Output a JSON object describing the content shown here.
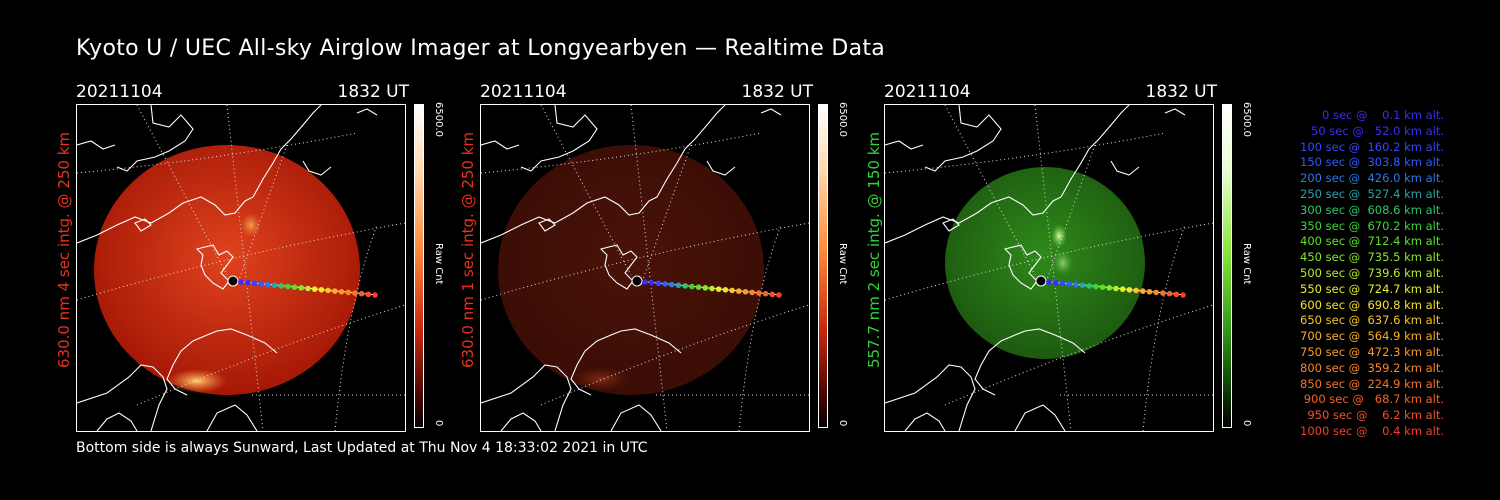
{
  "title": "Kyoto U / UEC All-sky Airglow Imager at Longyearbyen — Realtime Data",
  "footer": "Bottom side is always Sunward, Last Updated at Thu Nov  4 18:33:02 2021 in UTC",
  "panels": [
    {
      "date": "20211104",
      "time": "1832 UT",
      "ylabel": "630.0 nm 4 sec intg. @ 250 km",
      "label_color": "#e8321e",
      "cbar_max": "6500.0",
      "cbar_unit": "Raw Cnt",
      "cbar_min": "0",
      "scheme": "red-bright"
    },
    {
      "date": "20211104",
      "time": "1832 UT",
      "ylabel": "630.0 nm 1 sec intg. @ 250 km",
      "label_color": "#e8321e",
      "cbar_max": "6500.0",
      "cbar_unit": "Raw Cnt",
      "cbar_min": "0",
      "scheme": "red-dim"
    },
    {
      "date": "20211104",
      "time": "1832 UT",
      "ylabel": "557.7 nm 2 sec intg. @ 150 km",
      "label_color": "#34d13a",
      "cbar_max": "6500.0",
      "cbar_unit": "Raw Cnt",
      "cbar_min": "0",
      "scheme": "green"
    }
  ],
  "legend": [
    {
      "text": "0 sec @    0.1 km alt.",
      "color": "#3a2bff"
    },
    {
      "text": "50 sec @   52.0 km alt.",
      "color": "#3a2bff"
    },
    {
      "text": "100 sec @  160.2 km alt.",
      "color": "#3346ff"
    },
    {
      "text": "150 sec @  303.8 km alt.",
      "color": "#2f5bff"
    },
    {
      "text": "200 sec @  426.0 km alt.",
      "color": "#2b79e6"
    },
    {
      "text": "250 sec @  527.4 km alt.",
      "color": "#2aa2a8"
    },
    {
      "text": "300 sec @  608.6 km alt.",
      "color": "#2cc76a"
    },
    {
      "text": "350 sec @  670.2 km alt.",
      "color": "#3bd632"
    },
    {
      "text": "400 sec @  712.4 km alt.",
      "color": "#5be02a"
    },
    {
      "text": "450 sec @  735.5 km alt.",
      "color": "#86e82a"
    },
    {
      "text": "500 sec @  739.6 km alt.",
      "color": "#b8ee2c"
    },
    {
      "text": "550 sec @  724.7 km alt.",
      "color": "#e8f02c"
    },
    {
      "text": "600 sec @  690.8 km alt.",
      "color": "#f8e22a"
    },
    {
      "text": "650 sec @  637.6 km alt.",
      "color": "#f8c62a"
    },
    {
      "text": "700 sec @  564.9 km alt.",
      "color": "#f8ae2a"
    },
    {
      "text": "750 sec @  472.3 km alt.",
      "color": "#f89a2a"
    },
    {
      "text": "800 sec @  359.2 km alt.",
      "color": "#f8862a"
    },
    {
      "text": "850 sec @  224.9 km alt.",
      "color": "#f8722a"
    },
    {
      "text": "900 sec @   68.7 km alt.",
      "color": "#f8602a"
    },
    {
      "text": "950 sec @    6.2 km alt.",
      "color": "#f84e2a"
    },
    {
      "text": "1000 sec @    0.4 km alt.",
      "color": "#f83c2a"
    }
  ]
}
